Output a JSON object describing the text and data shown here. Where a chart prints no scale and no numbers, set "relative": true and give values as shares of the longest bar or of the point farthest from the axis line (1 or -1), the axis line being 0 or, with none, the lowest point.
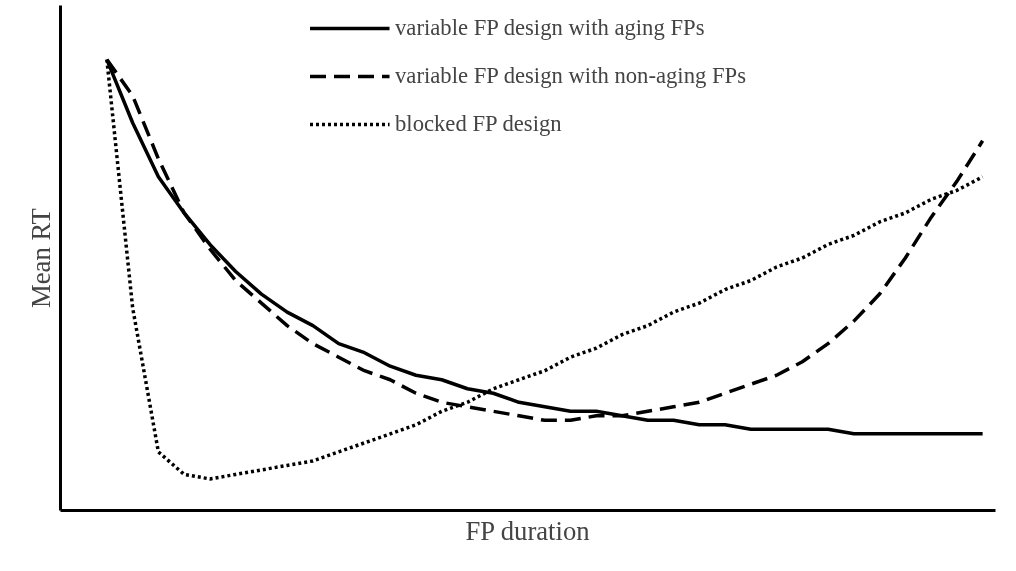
{
  "chart_data": {
    "type": "line",
    "relative": true,
    "xlabel": "FP duration",
    "ylabel": "Mean RT",
    "legend": "top",
    "categories": [
      null,
      null,
      null,
      null,
      null,
      null,
      null,
      null,
      null,
      null,
      null,
      null,
      null,
      null,
      null,
      null,
      null,
      null,
      null,
      null,
      null,
      null,
      null,
      null,
      null,
      null,
      null,
      null,
      null,
      null,
      null,
      null,
      null,
      null,
      null
    ],
    "series": [
      {
        "name": "variable FP design with aging FPs",
        "color": "#000000",
        "line_style": "solid",
        "values": [
          1.0,
          0.86,
          0.74,
          0.66,
          0.59,
          0.53,
          0.48,
          0.44,
          0.41,
          0.37,
          0.35,
          0.32,
          0.3,
          0.29,
          0.27,
          0.26,
          0.24,
          0.23,
          0.22,
          0.22,
          0.21,
          0.2,
          0.2,
          0.19,
          0.19,
          0.18,
          0.18,
          0.18,
          0.18,
          0.17,
          0.17,
          0.17,
          0.17,
          0.17,
          0.17
        ]
      },
      {
        "name": "variable FP design with non-aging FPs",
        "color": "#000000",
        "line_style": "dashed",
        "values": [
          1.0,
          0.92,
          0.78,
          0.66,
          0.58,
          0.51,
          0.46,
          0.41,
          0.37,
          0.34,
          0.31,
          0.29,
          0.26,
          0.24,
          0.23,
          0.22,
          0.21,
          0.2,
          0.2,
          0.21,
          0.21,
          0.22,
          0.23,
          0.24,
          0.26,
          0.28,
          0.3,
          0.33,
          0.37,
          0.42,
          0.48,
          0.56,
          0.65,
          0.73,
          0.82
        ]
      },
      {
        "name": "blocked FP design",
        "color": "#000000",
        "line_style": "dotted",
        "values": [
          1.0,
          0.45,
          0.13,
          0.08,
          0.07,
          0.08,
          0.09,
          0.1,
          0.11,
          0.13,
          0.15,
          0.17,
          0.19,
          0.22,
          0.24,
          0.27,
          0.29,
          0.31,
          0.34,
          0.36,
          0.39,
          0.41,
          0.44,
          0.46,
          0.49,
          0.51,
          0.54,
          0.56,
          0.59,
          0.61,
          0.64,
          0.66,
          0.69,
          0.71,
          0.74
        ]
      }
    ]
  }
}
